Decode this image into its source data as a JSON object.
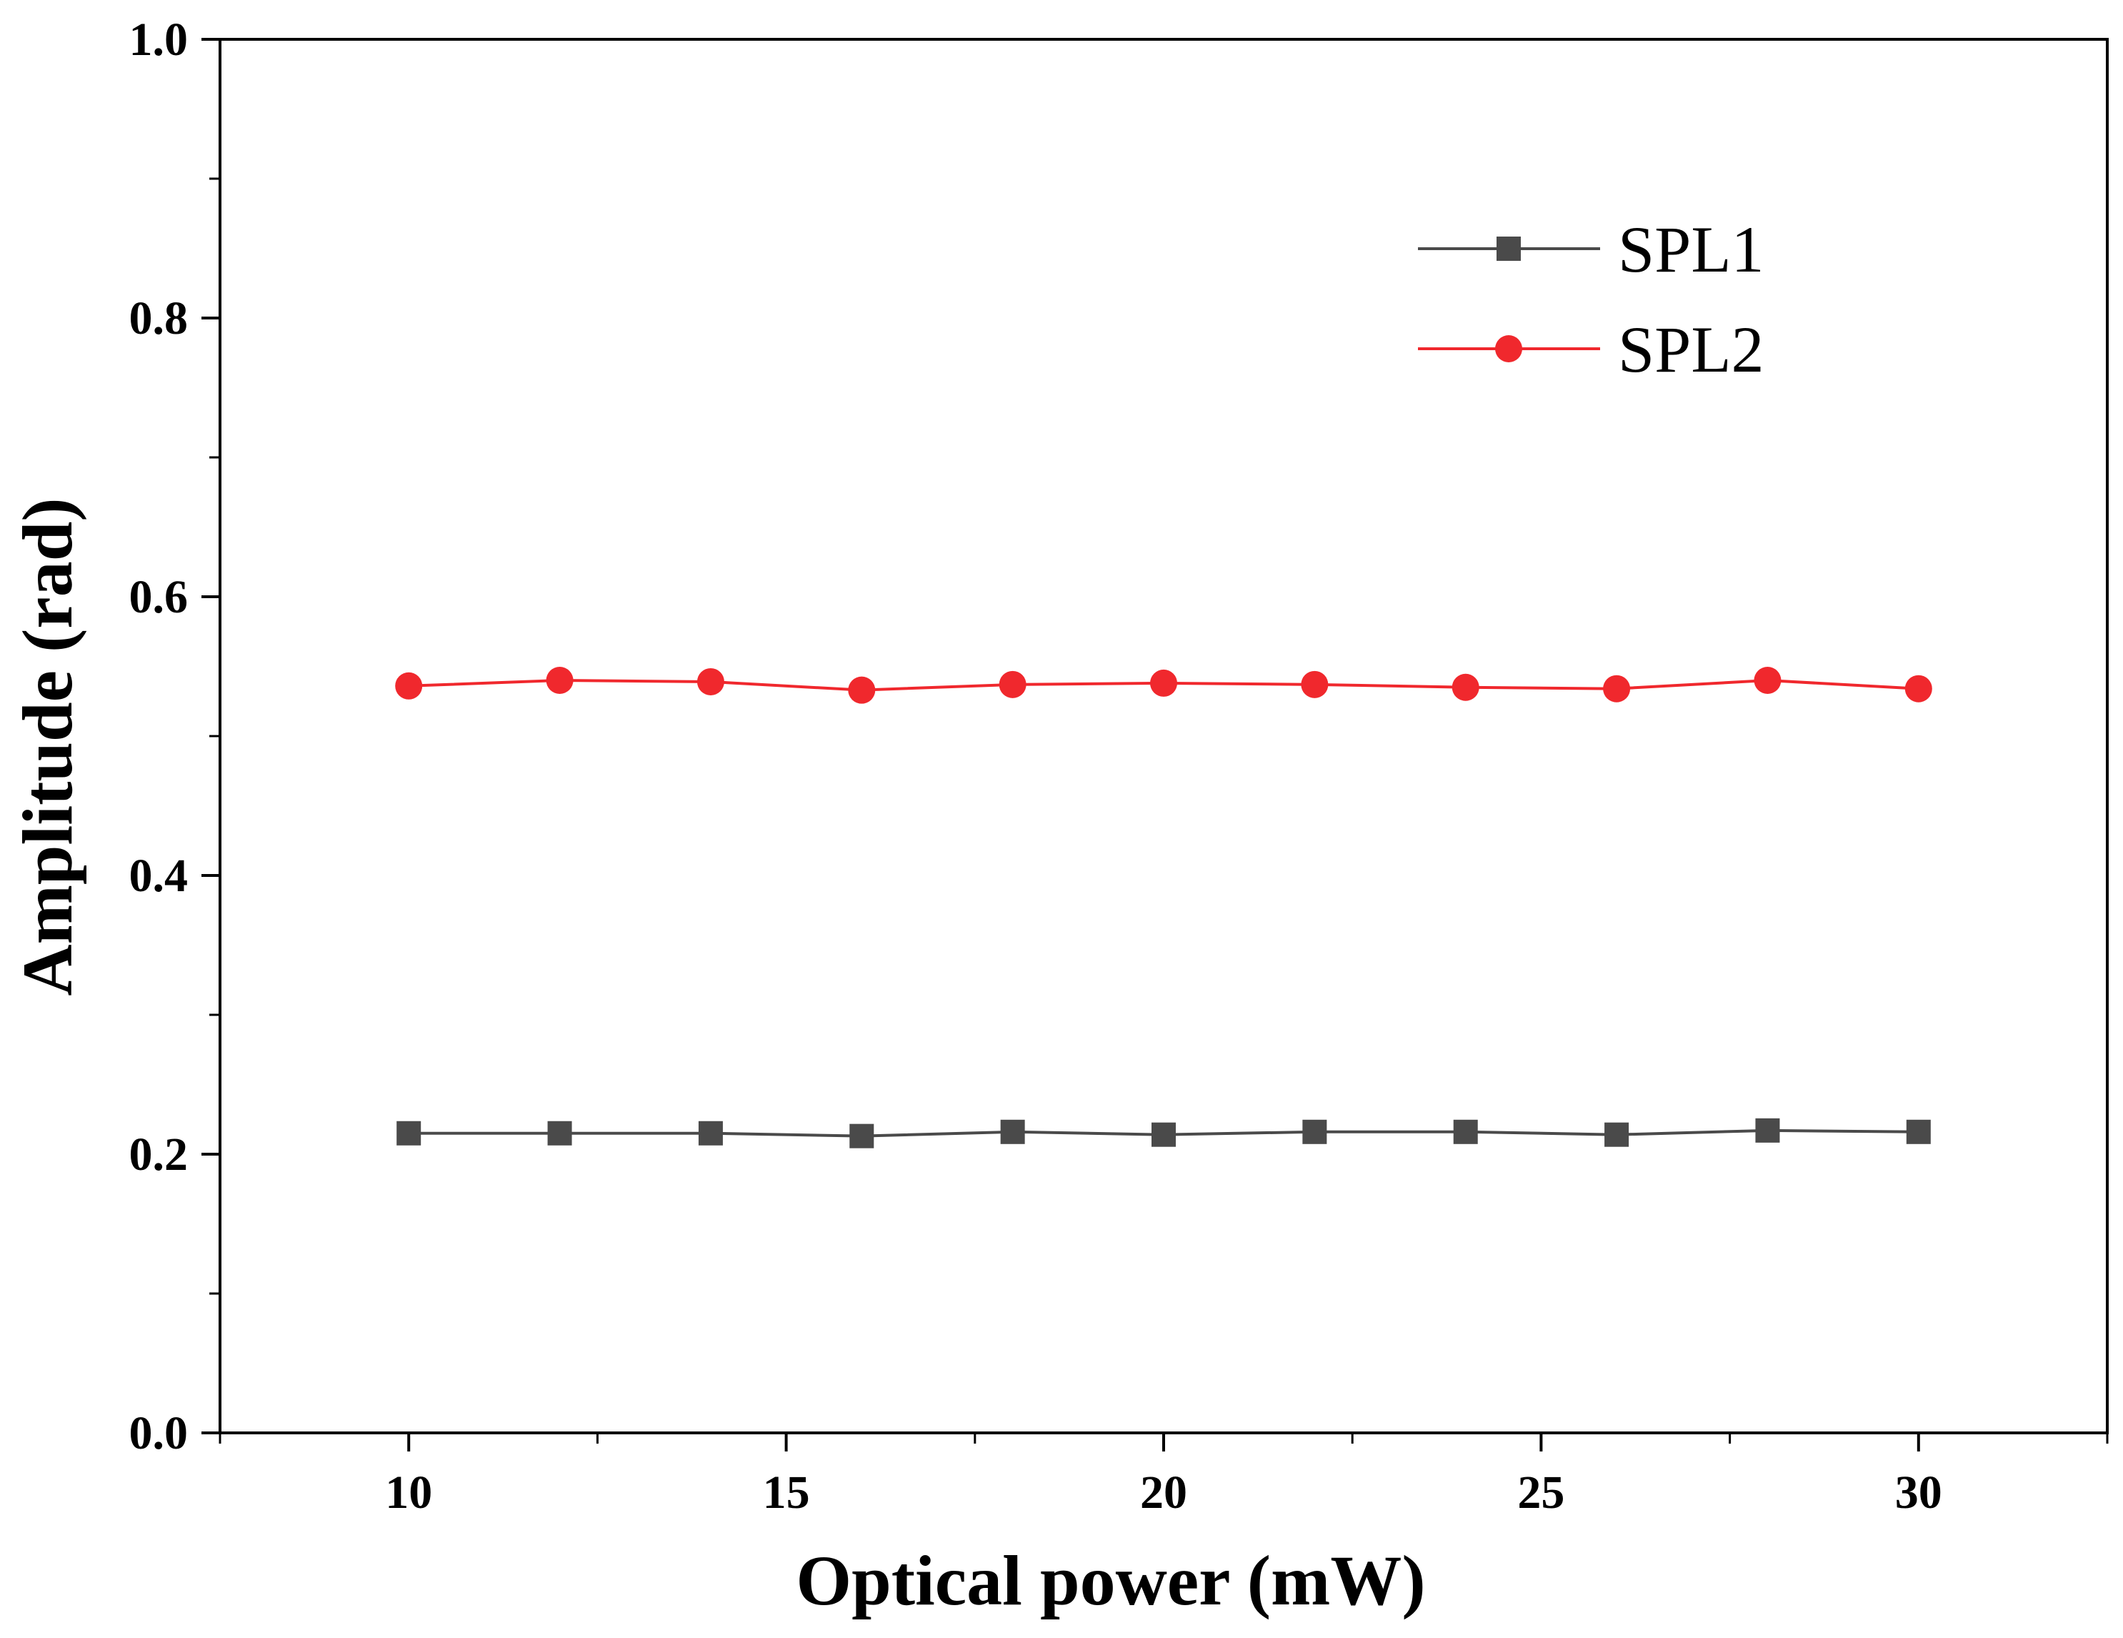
{
  "chart_data": {
    "type": "line",
    "title": "",
    "xlabel": "Optical power (mW)",
    "ylabel": "Amplitude (rad)",
    "xlim": [
      7.5,
      32.5
    ],
    "ylim": [
      0.0,
      1.0
    ],
    "x_ticks": [
      10,
      15,
      20,
      25,
      30
    ],
    "x_tick_labels": [
      "10",
      "15",
      "20",
      "25",
      "30"
    ],
    "y_ticks": [
      0.0,
      0.2,
      0.4,
      0.6,
      0.8,
      1.0
    ],
    "y_tick_labels": [
      "0.0",
      "0.2",
      "0.4",
      "0.6",
      "0.8",
      "1.0"
    ],
    "grid": false,
    "legend_position": "top-right",
    "x": [
      10,
      12,
      14,
      16,
      18,
      20,
      22,
      24,
      26,
      28,
      30
    ],
    "series": [
      {
        "name": "SPL1",
        "marker": "square",
        "color": "#4a4a4a",
        "values": [
          0.215,
          0.215,
          0.215,
          0.213,
          0.216,
          0.214,
          0.216,
          0.216,
          0.214,
          0.217,
          0.216
        ]
      },
      {
        "name": "SPL2",
        "marker": "circle",
        "color": "#f0282d",
        "values": [
          0.536,
          0.54,
          0.539,
          0.533,
          0.537,
          0.538,
          0.537,
          0.535,
          0.534,
          0.54,
          0.534
        ]
      }
    ]
  }
}
